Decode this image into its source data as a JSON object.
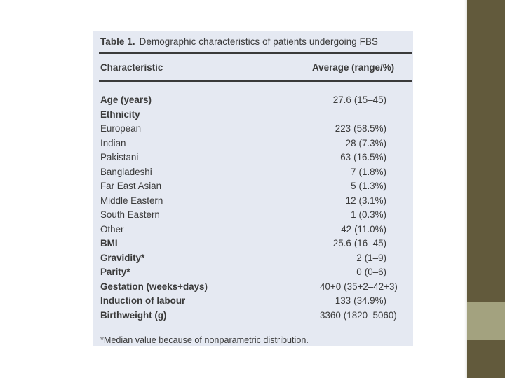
{
  "table": {
    "label": "Table 1.",
    "caption": "Demographic characteristics of patients undergoing FBS",
    "header": {
      "characteristic": "Characteristic",
      "value": "Average (range/%)"
    },
    "rows": [
      {
        "label": "Age (years)",
        "bold": true,
        "value": "27.6",
        "range": "(15–45)"
      },
      {
        "label": "Ethnicity",
        "bold": true,
        "value": "",
        "range": ""
      },
      {
        "label": "European",
        "bold": false,
        "value": "223",
        "range": "(58.5%)"
      },
      {
        "label": "Indian",
        "bold": false,
        "value": "28",
        "range": "(7.3%)"
      },
      {
        "label": "Pakistani",
        "bold": false,
        "value": "63",
        "range": "(16.5%)"
      },
      {
        "label": "Bangladeshi",
        "bold": false,
        "value": "7",
        "range": "(1.8%)"
      },
      {
        "label": "Far East Asian",
        "bold": false,
        "value": "5",
        "range": "(1.3%)"
      },
      {
        "label": "Middle Eastern",
        "bold": false,
        "value": "12",
        "range": "(3.1%)"
      },
      {
        "label": "South Eastern",
        "bold": false,
        "value": "1",
        "range": "(0.3%)"
      },
      {
        "label": "Other",
        "bold": false,
        "value": "42",
        "range": "(11.0%)"
      },
      {
        "label": "BMI",
        "bold": true,
        "value": "25.6",
        "range": "(16–45)"
      },
      {
        "label": "Gravidity*",
        "bold": true,
        "value": "2",
        "range": "(1–9)"
      },
      {
        "label": "Parity*",
        "bold": true,
        "value": "0",
        "range": "(0–6)"
      },
      {
        "label": "Gestation (weeks+days)",
        "bold": true,
        "value": "40+0",
        "range": "(35+2–42+3)"
      },
      {
        "label": "Induction of labour",
        "bold": true,
        "value": "133",
        "range": "(34.9%)"
      },
      {
        "label": "Birthweight (g)",
        "bold": true,
        "value": "3360",
        "range": "(1820–5060)"
      }
    ],
    "footnote": "*Median value because of nonparametric distribution."
  },
  "colors": {
    "card_background": "#e5e9f2",
    "text": "#3a3a3a",
    "sidebar_dark": "#625a3c",
    "sidebar_light": "#a3a27f"
  }
}
